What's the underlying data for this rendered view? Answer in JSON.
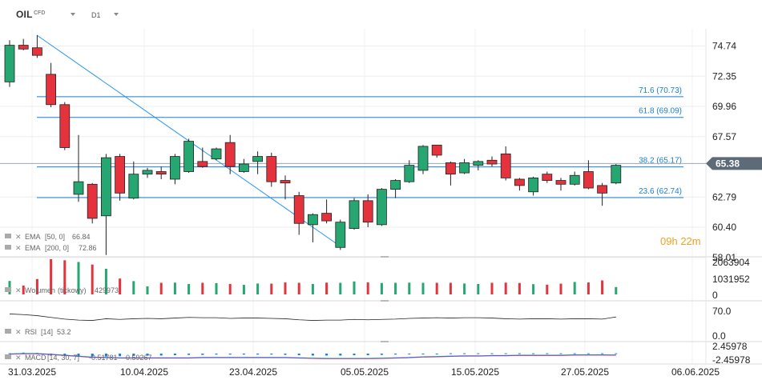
{
  "toolbar": {
    "symbol": "OIL",
    "instrument_type": "CFD",
    "interval": "D1"
  },
  "price_axis": {
    "labels": [
      "74.74",
      "72.35",
      "69.96",
      "67.57",
      "65.38",
      "62.79",
      "60.40",
      "58.01"
    ],
    "values": [
      74.74,
      72.35,
      69.96,
      67.57,
      65.38,
      62.79,
      60.4,
      58.01
    ],
    "current_price": "65.38",
    "current_price_value": 65.38
  },
  "fibonacci": [
    {
      "label": "71.6 (70.73)",
      "value": 70.73
    },
    {
      "label": "61.8 (69.09)",
      "value": 69.09
    },
    {
      "label": "38.2 (65.17)",
      "value": 65.17
    },
    {
      "label": "23.6 (62.74)",
      "value": 62.74
    }
  ],
  "timer": {
    "hours": "09",
    "h_unit": "h",
    "minutes": "22",
    "m_unit": "m"
  },
  "indicators": {
    "ema50": {
      "label": "EMA",
      "params": "[50, 0]",
      "value": "66.84"
    },
    "ema200": {
      "label": "EMA",
      "params": "[200, 0]",
      "value": "72.86"
    },
    "volume": {
      "label": "Wolumen",
      "params": "(tickowy)",
      "value": "429973",
      "axis": [
        "2063904",
        "1031952",
        "0"
      ]
    },
    "rsi": {
      "label": "RSI",
      "params": "[14]",
      "value": "53.2",
      "axis": [
        "70.0",
        "0.0"
      ]
    },
    "macd": {
      "label": "MACD",
      "params": "[14, 30, 7]",
      "value1": "-0.51781",
      "value2": "0.59267",
      "axis": [
        "2.45978",
        "-2.45978"
      ]
    }
  },
  "dates": [
    "31.03.2025",
    "10.04.2025",
    "23.04.2025",
    "05.05.2025",
    "15.05.2025",
    "27.05.2025",
    "06.06.2025"
  ],
  "colors": {
    "up": "#26a671",
    "down": "#e5333d",
    "fib": "#1a7fd6",
    "trend": "#2196f3",
    "timer": "#f0a020"
  },
  "chart_data": {
    "type": "candlestick",
    "candles": [
      {
        "o": 71.9,
        "h": 75.2,
        "l": 71.5,
        "c": 74.8
      },
      {
        "o": 74.8,
        "h": 75.3,
        "l": 74.4,
        "c": 74.5
      },
      {
        "o": 74.6,
        "h": 75.6,
        "l": 73.8,
        "c": 74.0
      },
      {
        "o": 72.5,
        "h": 73.4,
        "l": 69.9,
        "c": 70.1
      },
      {
        "o": 70.1,
        "h": 70.3,
        "l": 66.5,
        "c": 66.7
      },
      {
        "o": 63.0,
        "h": 67.7,
        "l": 62.4,
        "c": 64.0
      },
      {
        "o": 63.8,
        "h": 63.9,
        "l": 60.7,
        "c": 61.1
      },
      {
        "o": 61.3,
        "h": 66.2,
        "l": 58.2,
        "c": 65.9
      },
      {
        "o": 66.0,
        "h": 66.2,
        "l": 62.5,
        "c": 63.1
      },
      {
        "o": 62.7,
        "h": 65.6,
        "l": 62.6,
        "c": 64.6
      },
      {
        "o": 64.6,
        "h": 65.1,
        "l": 64.3,
        "c": 64.9
      },
      {
        "o": 64.8,
        "h": 65.2,
        "l": 64.2,
        "c": 64.6
      },
      {
        "o": 64.2,
        "h": 66.2,
        "l": 63.8,
        "c": 66.0
      },
      {
        "o": 64.8,
        "h": 67.4,
        "l": 64.7,
        "c": 67.2
      },
      {
        "o": 65.6,
        "h": 66.7,
        "l": 65.1,
        "c": 65.2
      },
      {
        "o": 65.8,
        "h": 66.7,
        "l": 65.7,
        "c": 66.6
      },
      {
        "o": 67.1,
        "h": 67.7,
        "l": 64.6,
        "c": 65.2
      },
      {
        "o": 64.8,
        "h": 65.8,
        "l": 64.7,
        "c": 65.4
      },
      {
        "o": 65.6,
        "h": 66.4,
        "l": 64.6,
        "c": 66.0
      },
      {
        "o": 66.0,
        "h": 66.3,
        "l": 63.6,
        "c": 64.0
      },
      {
        "o": 64.1,
        "h": 64.5,
        "l": 62.6,
        "c": 63.9
      },
      {
        "o": 62.9,
        "h": 63.2,
        "l": 59.8,
        "c": 60.7
      },
      {
        "o": 60.6,
        "h": 61.5,
        "l": 59.2,
        "c": 61.4
      },
      {
        "o": 61.5,
        "h": 62.6,
        "l": 60.7,
        "c": 60.9
      },
      {
        "o": 58.8,
        "h": 61.0,
        "l": 58.6,
        "c": 60.8
      },
      {
        "o": 60.3,
        "h": 62.7,
        "l": 60.2,
        "c": 62.5
      },
      {
        "o": 62.5,
        "h": 63.0,
        "l": 60.4,
        "c": 60.8
      },
      {
        "o": 60.6,
        "h": 63.5,
        "l": 60.5,
        "c": 63.4
      },
      {
        "o": 63.4,
        "h": 64.2,
        "l": 62.7,
        "c": 64.1
      },
      {
        "o": 64.0,
        "h": 65.7,
        "l": 63.9,
        "c": 65.3
      },
      {
        "o": 64.9,
        "h": 66.9,
        "l": 64.6,
        "c": 66.8
      },
      {
        "o": 66.9,
        "h": 66.9,
        "l": 65.9,
        "c": 66.1
      },
      {
        "o": 65.5,
        "h": 65.6,
        "l": 63.7,
        "c": 64.6
      },
      {
        "o": 64.7,
        "h": 65.8,
        "l": 64.6,
        "c": 65.5
      },
      {
        "o": 65.3,
        "h": 65.7,
        "l": 64.9,
        "c": 65.6
      },
      {
        "o": 65.7,
        "h": 66.0,
        "l": 65.2,
        "c": 65.4
      },
      {
        "o": 66.2,
        "h": 66.8,
        "l": 64.1,
        "c": 64.3
      },
      {
        "o": 64.2,
        "h": 64.3,
        "l": 63.3,
        "c": 63.7
      },
      {
        "o": 63.2,
        "h": 64.4,
        "l": 62.9,
        "c": 64.3
      },
      {
        "o": 64.6,
        "h": 64.8,
        "l": 63.9,
        "c": 64.1
      },
      {
        "o": 64.1,
        "h": 64.3,
        "l": 63.3,
        "c": 63.8
      },
      {
        "o": 63.8,
        "h": 64.8,
        "l": 63.7,
        "c": 64.5
      },
      {
        "o": 64.8,
        "h": 65.7,
        "l": 63.4,
        "c": 63.5
      },
      {
        "o": 63.7,
        "h": 63.9,
        "l": 62.1,
        "c": 63.1
      },
      {
        "o": 63.9,
        "h": 65.4,
        "l": 63.8,
        "c": 65.3
      }
    ],
    "volume": [
      790000,
      520000,
      900000,
      2063904,
      2000000,
      1900000,
      1750000,
      1500000,
      930000,
      780000,
      470000,
      680000,
      690000,
      610000,
      680000,
      660000,
      610000,
      560000,
      640000,
      630000,
      700000,
      680000,
      610000,
      690000,
      680000,
      760000,
      700000,
      670000,
      680000,
      690000,
      680000,
      680000,
      680000,
      640000,
      610000,
      680000,
      690000,
      670000,
      600000,
      570000,
      630000,
      730000,
      700000,
      820000,
      429973
    ],
    "rsi": [
      62,
      60,
      57,
      52,
      47,
      44,
      43,
      48,
      46,
      48,
      49,
      48,
      50,
      52,
      51,
      51,
      49,
      50,
      50,
      49,
      48,
      45,
      43,
      44,
      44,
      46,
      45,
      46,
      47,
      49,
      50,
      51,
      50,
      51,
      51,
      50,
      48,
      47,
      48,
      48,
      47,
      48,
      48,
      47,
      53.2
    ],
    "macd_hist": [
      0.1,
      0.3,
      0.2,
      -0.4,
      -0.6,
      -0.7,
      -0.9,
      -0.9,
      -0.8,
      -0.7,
      -0.6,
      -0.6,
      -0.5,
      -0.4,
      -0.4,
      -0.3,
      -0.3,
      -0.3,
      -0.3,
      -0.3,
      -0.4,
      -0.5,
      -0.6,
      -0.6,
      -0.6,
      -0.5,
      -0.5,
      -0.4,
      -0.3,
      -0.2,
      -0.1,
      0.0,
      0.1,
      0.1,
      0.1,
      0.1,
      0.1,
      0.1,
      0.1,
      0.1,
      0.1,
      0.1,
      0.1,
      0.1,
      0.1
    ],
    "macd_line": [
      -0.2,
      -0.1,
      -0.1,
      -0.3,
      -0.6,
      -0.9,
      -1.2,
      -1.3,
      -1.4,
      -1.4,
      -1.4,
      -1.4,
      -1.4,
      -1.4,
      -1.3,
      -1.3,
      -1.3,
      -1.3,
      -1.3,
      -1.3,
      -1.3,
      -1.4,
      -1.5,
      -1.6,
      -1.6,
      -1.6,
      -1.6,
      -1.5,
      -1.4,
      -1.3,
      -1.1,
      -1.0,
      -0.9,
      -0.8,
      -0.8,
      -0.7,
      -0.7,
      -0.6,
      -0.6,
      -0.6,
      -0.6,
      -0.5,
      -0.5,
      -0.5,
      -0.52
    ]
  }
}
